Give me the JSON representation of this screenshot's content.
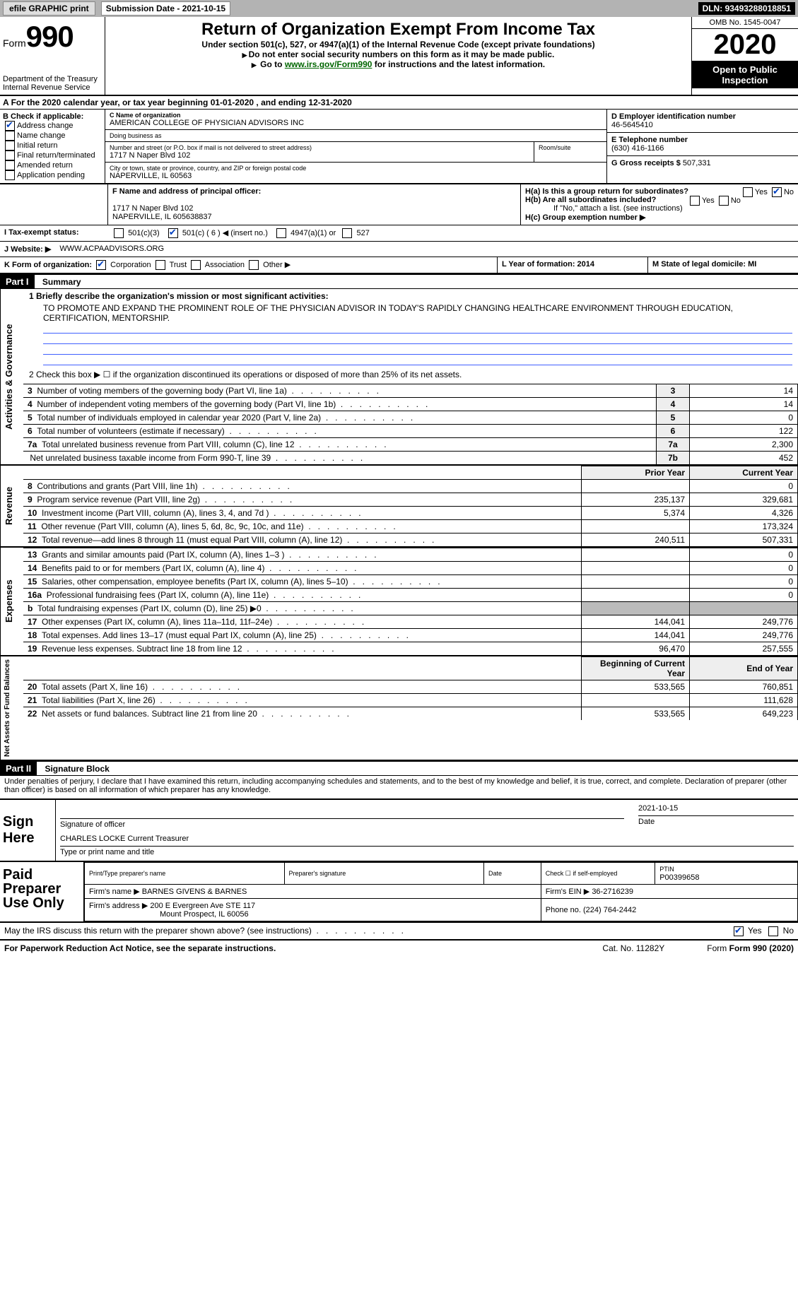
{
  "header": {
    "efile_btn": "efile GRAPHIC print",
    "sub_date_label": "Submission Date - ",
    "sub_date": "2021-10-15",
    "dln_label": "DLN: ",
    "dln": "93493288018851"
  },
  "form_top": {
    "form_word": "Form",
    "num": "990",
    "dept": "Department of the Treasury",
    "irs": "Internal Revenue Service",
    "title": "Return of Organization Exempt From Income Tax",
    "sub1": "Under section 501(c), 527, or 4947(a)(1) of the Internal Revenue Code (except private foundations)",
    "sub2": "Do not enter social security numbers on this form as it may be made public.",
    "sub3_pre": "Go to ",
    "sub3_link": "www.irs.gov/Form990",
    "sub3_post": " for instructions and the latest information.",
    "omb": "OMB No. 1545-0047",
    "year": "2020",
    "open": "Open to Public Inspection"
  },
  "line_a": {
    "pre": "For the 2020 calendar year, or tax year beginning ",
    "begin": "01-01-2020",
    "mid": "  , and ending ",
    "end": "12-31-2020"
  },
  "box_b": {
    "title": "B Check if applicable:",
    "items": [
      {
        "label": "Address change",
        "checked": true
      },
      {
        "label": "Name change",
        "checked": false
      },
      {
        "label": "Initial return",
        "checked": false
      },
      {
        "label": "Final return/terminated",
        "checked": false
      },
      {
        "label": "Amended return",
        "checked": false
      },
      {
        "label": "Application pending",
        "checked": false
      }
    ]
  },
  "box_c": {
    "name_lbl": "C Name of organization",
    "name": "AMERICAN COLLEGE OF PHYSICIAN ADVISORS INC",
    "dba_lbl": "Doing business as",
    "dba": "",
    "addr_lbl": "Number and street (or P.O. box if mail is not delivered to street address)",
    "room_lbl": "Room/suite",
    "addr": "1717 N Naper Blvd 102",
    "city_lbl": "City or town, state or province, country, and ZIP or foreign postal code",
    "city": "NAPERVILLE, IL  60563"
  },
  "box_de": {
    "d_lbl": "D Employer identification number",
    "d_val": "46-5645410",
    "e_lbl": "E Telephone number",
    "e_val": "(630) 416-1166",
    "g_lbl": "G Gross receipts $ ",
    "g_val": "507,331"
  },
  "box_f": {
    "lbl": "F Name and address of principal officer:",
    "l1": "1717 N Naper Blvd 102",
    "l2": "NAPERVILLE, IL  605638837"
  },
  "box_h": {
    "a": "H(a)  Is this a group return for subordinates?",
    "b": "H(b)  Are all subordinates included?",
    "b_note": "If \"No,\" attach a list. (see instructions)",
    "c": "H(c)  Group exemption number ▶",
    "yes": "Yes",
    "no": "No"
  },
  "row_i": {
    "lbl": "I  Tax-exempt status:",
    "opts": [
      "501(c)(3)",
      "501(c) ( 6 ) ◀ (insert no.)",
      "4947(a)(1) or",
      "527"
    ]
  },
  "row_j": {
    "lbl": "J  Website: ▶",
    "val": "WWW.ACPAADVISORS.ORG"
  },
  "row_k": {
    "lbl": "K Form of organization:",
    "opts": [
      "Corporation",
      "Trust",
      "Association",
      "Other ▶"
    ]
  },
  "row_lm": {
    "l": "L Year of formation: 2014",
    "m": "M State of legal domicile: MI"
  },
  "part1": {
    "tag": "Part I",
    "title": "Summary",
    "l1_lbl": "1  Briefly describe the organization's mission or most significant activities:",
    "l1_val": "TO PROMOTE AND EXPAND THE PROMINENT ROLE OF THE PHYSICIAN ADVISOR IN TODAY'S RAPIDLY CHANGING HEALTHCARE ENVIRONMENT THROUGH EDUCATION, CERTIFICATION, MENTORSHIP.",
    "l2": "2  Check this box ▶ ☐  if the organization discontinued its operations or disposed of more than 25% of its net assets.",
    "rows_3_7": [
      {
        "n": "3",
        "txt": "Number of voting members of the governing body (Part VI, line 1a)",
        "col": "3",
        "val": "14"
      },
      {
        "n": "4",
        "txt": "Number of independent voting members of the governing body (Part VI, line 1b)",
        "col": "4",
        "val": "14"
      },
      {
        "n": "5",
        "txt": "Total number of individuals employed in calendar year 2020 (Part V, line 2a)",
        "col": "5",
        "val": "0"
      },
      {
        "n": "6",
        "txt": "Total number of volunteers (estimate if necessary)",
        "col": "6",
        "val": "122"
      },
      {
        "n": "7a",
        "txt": "Total unrelated business revenue from Part VIII, column (C), line 12",
        "col": "7a",
        "val": "2,300"
      },
      {
        "n": "",
        "txt": "Net unrelated business taxable income from Form 990-T, line 39",
        "col": "7b",
        "val": "452"
      }
    ],
    "hdr_prior": "Prior Year",
    "hdr_curr": "Current Year",
    "rev_rows": [
      {
        "n": "8",
        "txt": "Contributions and grants (Part VIII, line 1h)",
        "p": "",
        "c": "0"
      },
      {
        "n": "9",
        "txt": "Program service revenue (Part VIII, line 2g)",
        "p": "235,137",
        "c": "329,681"
      },
      {
        "n": "10",
        "txt": "Investment income (Part VIII, column (A), lines 3, 4, and 7d )",
        "p": "5,374",
        "c": "4,326"
      },
      {
        "n": "11",
        "txt": "Other revenue (Part VIII, column (A), lines 5, 6d, 8c, 9c, 10c, and 11e)",
        "p": "",
        "c": "173,324"
      },
      {
        "n": "12",
        "txt": "Total revenue—add lines 8 through 11 (must equal Part VIII, column (A), line 12)",
        "p": "240,511",
        "c": "507,331"
      }
    ],
    "exp_rows": [
      {
        "n": "13",
        "txt": "Grants and similar amounts paid (Part IX, column (A), lines 1–3 )",
        "p": "",
        "c": "0"
      },
      {
        "n": "14",
        "txt": "Benefits paid to or for members (Part IX, column (A), line 4)",
        "p": "",
        "c": "0"
      },
      {
        "n": "15",
        "txt": "Salaries, other compensation, employee benefits (Part IX, column (A), lines 5–10)",
        "p": "",
        "c": "0"
      },
      {
        "n": "16a",
        "txt": "Professional fundraising fees (Part IX, column (A), line 11e)",
        "p": "",
        "c": "0"
      },
      {
        "n": "b",
        "txt": "Total fundraising expenses (Part IX, column (D), line 25) ▶0",
        "p": "SHADE",
        "c": "SHADE"
      },
      {
        "n": "17",
        "txt": "Other expenses (Part IX, column (A), lines 11a–11d, 11f–24e)",
        "p": "144,041",
        "c": "249,776"
      },
      {
        "n": "18",
        "txt": "Total expenses. Add lines 13–17 (must equal Part IX, column (A), line 25)",
        "p": "144,041",
        "c": "249,776"
      },
      {
        "n": "19",
        "txt": "Revenue less expenses. Subtract line 18 from line 12",
        "p": "96,470",
        "c": "257,555"
      }
    ],
    "hdr_begin": "Beginning of Current Year",
    "hdr_end": "End of Year",
    "na_rows": [
      {
        "n": "20",
        "txt": "Total assets (Part X, line 16)",
        "p": "533,565",
        "c": "760,851"
      },
      {
        "n": "21",
        "txt": "Total liabilities (Part X, line 26)",
        "p": "",
        "c": "111,628"
      },
      {
        "n": "22",
        "txt": "Net assets or fund balances. Subtract line 21 from line 20",
        "p": "533,565",
        "c": "649,223"
      }
    ]
  },
  "part2": {
    "tag": "Part II",
    "title": "Signature Block",
    "decl": "Under penalties of perjury, I declare that I have examined this return, including accompanying schedules and statements, and to the best of my knowledge and belief, it is true, correct, and complete. Declaration of preparer (other than officer) is based on all information of which preparer has any knowledge."
  },
  "sign": {
    "here": "Sign Here",
    "sig_lbl": "Signature of officer",
    "date_lbl": "Date",
    "date_val": "2021-10-15",
    "name": "CHARLES LOCKE  Current Treasurer",
    "name_lbl": "Type or print name and title"
  },
  "preparer": {
    "here": "Paid Preparer Use Only",
    "h1": "Print/Type preparer's name",
    "h2": "Preparer's signature",
    "h3": "Date",
    "h4": "Check ☐ if self-employed",
    "h5": "PTIN",
    "ptin": "P00399658",
    "firm_lbl": "Firm's name    ▶",
    "firm": "BARNES GIVENS & BARNES",
    "ein_lbl": "Firm's EIN ▶",
    "ein": "36-2716239",
    "addr_lbl": "Firm's address ▶",
    "addr1": "200 E Evergreen Ave STE 117",
    "addr2": "Mount Prospect, IL  60056",
    "phone_lbl": "Phone no.",
    "phone": "(224) 764-2442"
  },
  "footer": {
    "q": "May the IRS discuss this return with the preparer shown above? (see instructions)",
    "pra": "For Paperwork Reduction Act Notice, see the separate instructions.",
    "cat": "Cat. No. 11282Y",
    "form": "Form 990 (2020)"
  },
  "side_labels": {
    "gov": "Activities & Governance",
    "rev": "Revenue",
    "exp": "Expenses",
    "na": "Net Assets or Fund Balances"
  }
}
